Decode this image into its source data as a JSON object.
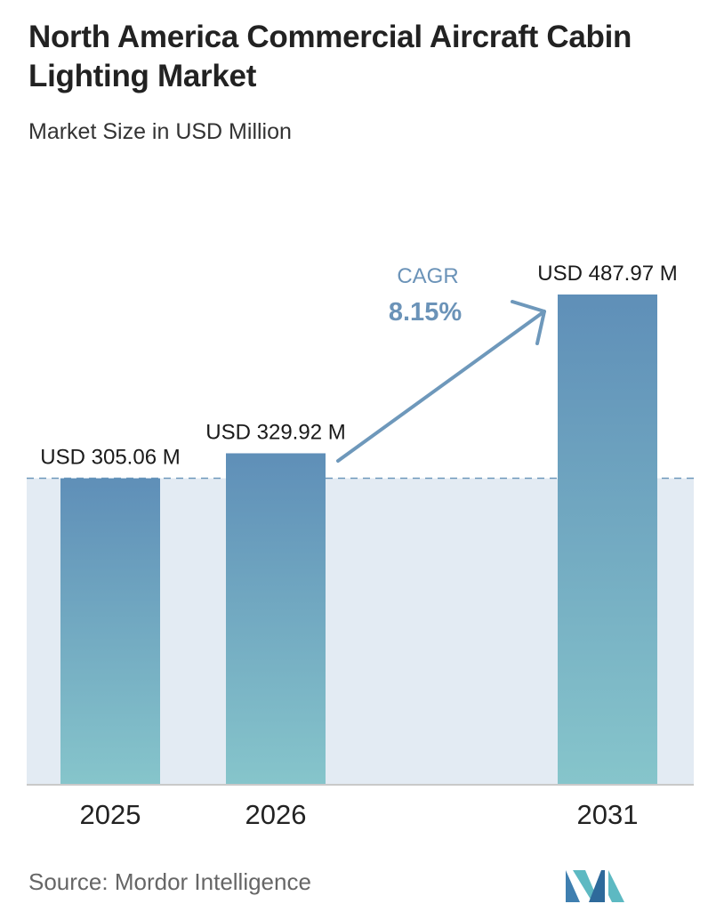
{
  "header": {
    "title": "North America Commercial Aircraft Cabin Lighting Market",
    "subtitle": "Market Size in USD Million"
  },
  "chart_data": {
    "type": "bar",
    "title": "North America Commercial Aircraft Cabin Lighting Market",
    "subtitle": "Market Size in USD Million",
    "categories": [
      "2025",
      "2026",
      "2031"
    ],
    "values": [
      305.06,
      329.92,
      487.97
    ],
    "value_labels": [
      "USD 305.06 M",
      "USD 329.92 M",
      "USD 487.97 M"
    ],
    "unit": "USD Million",
    "ylim": [
      0,
      487.97
    ],
    "grid": false,
    "annotations": {
      "cagr_label": "CAGR",
      "cagr_value": "8.15%"
    },
    "colors": {
      "bar_top": "#5f8fb8",
      "bar_bottom": "#86c5cb",
      "area_fill": "#e3ebf3",
      "arrow": "#6e98bb",
      "cagr_text": "#6b93b8"
    }
  },
  "footer": {
    "source": "Source:  Mordor Intelligence",
    "logo_icon": "mordor-intelligence-logo-icon"
  }
}
